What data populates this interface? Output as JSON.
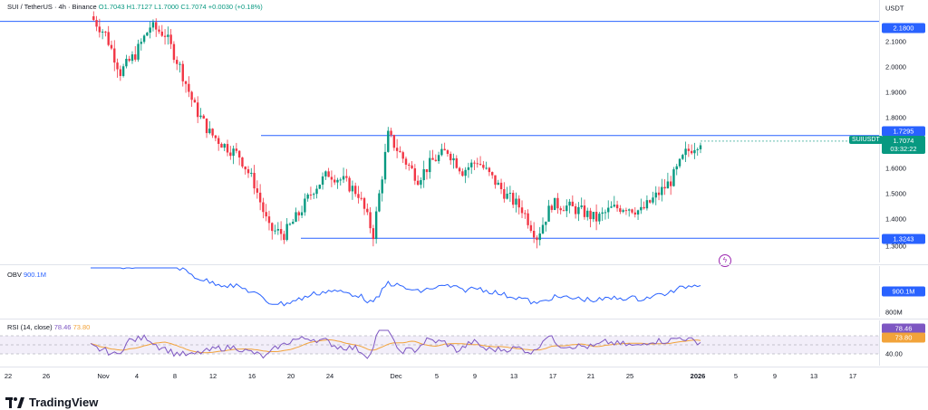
{
  "legend": {
    "symbol": "SUI / TetherUS · 4h · Binance",
    "open": "O1.7043",
    "high": "H1.7127",
    "low": "L1.7000",
    "close": "C1.7074",
    "change": "+0.0030 (+0.18%)"
  },
  "price_scale": {
    "currency": "USDT",
    "ticks": [
      "2.1000",
      "2.0000",
      "1.9000",
      "1.8000",
      "1.6000",
      "1.5000",
      "1.4000",
      "1.3000"
    ],
    "resistance_top_label": "2.1800",
    "resistance_label": "1.7295",
    "support_label": "1.3243",
    "last_symbol": "SUIUSDT",
    "last_price": "1.7074",
    "countdown": "03:32:22"
  },
  "obv": {
    "label": "OBV",
    "value": "900.1M",
    "scale_value": "900.1M",
    "scale_tick": "800M"
  },
  "rsi": {
    "label": "RSI (14, close)",
    "value": "78.46",
    "ma_value": "73.80",
    "scale_value": "78.46",
    "scale_ma": "73.80",
    "scale_tick": "40.00"
  },
  "time_axis": [
    "22",
    "26",
    "Nov",
    "4",
    "8",
    "12",
    "16",
    "20",
    "24",
    "Dec",
    "5",
    "9",
    "13",
    "17",
    "21",
    "25",
    "2026",
    "5",
    "9",
    "13",
    "17"
  ],
  "brand": "TradingView",
  "colors": {
    "up": "#089981",
    "down": "#f23645",
    "line": "#2962ff",
    "rsi": "#7e57c2",
    "rsi_ma": "#f2a33a"
  },
  "chart_data": {
    "type": "candlestick",
    "timeframe": "4h",
    "key_levels": {
      "resistance_top": 2.18,
      "resistance": 1.7295,
      "support": 1.3243
    },
    "price_path": [
      [
        0,
        2.2
      ],
      [
        5,
        2.13
      ],
      [
        10,
        1.98
      ],
      [
        15,
        2.05
      ],
      [
        20,
        2.16
      ],
      [
        25,
        2.13
      ],
      [
        30,
        2.0
      ],
      [
        35,
        1.84
      ],
      [
        40,
        1.74
      ],
      [
        45,
        1.69
      ],
      [
        50,
        1.65
      ],
      [
        55,
        1.54
      ],
      [
        60,
        1.36
      ],
      [
        65,
        1.34
      ],
      [
        70,
        1.42
      ],
      [
        75,
        1.52
      ],
      [
        80,
        1.58
      ],
      [
        85,
        1.55
      ],
      [
        90,
        1.5
      ],
      [
        95,
        1.34
      ],
      [
        100,
        1.73
      ],
      [
        105,
        1.64
      ],
      [
        110,
        1.56
      ],
      [
        115,
        1.63
      ],
      [
        120,
        1.67
      ],
      [
        125,
        1.59
      ],
      [
        130,
        1.63
      ],
      [
        135,
        1.56
      ],
      [
        140,
        1.49
      ],
      [
        145,
        1.44
      ],
      [
        150,
        1.33
      ],
      [
        155,
        1.46
      ],
      [
        160,
        1.45
      ],
      [
        165,
        1.43
      ],
      [
        170,
        1.4
      ],
      [
        175,
        1.44
      ],
      [
        180,
        1.45
      ],
      [
        185,
        1.43
      ],
      [
        190,
        1.49
      ],
      [
        195,
        1.55
      ],
      [
        200,
        1.66
      ],
      [
        205,
        1.71
      ]
    ]
  }
}
